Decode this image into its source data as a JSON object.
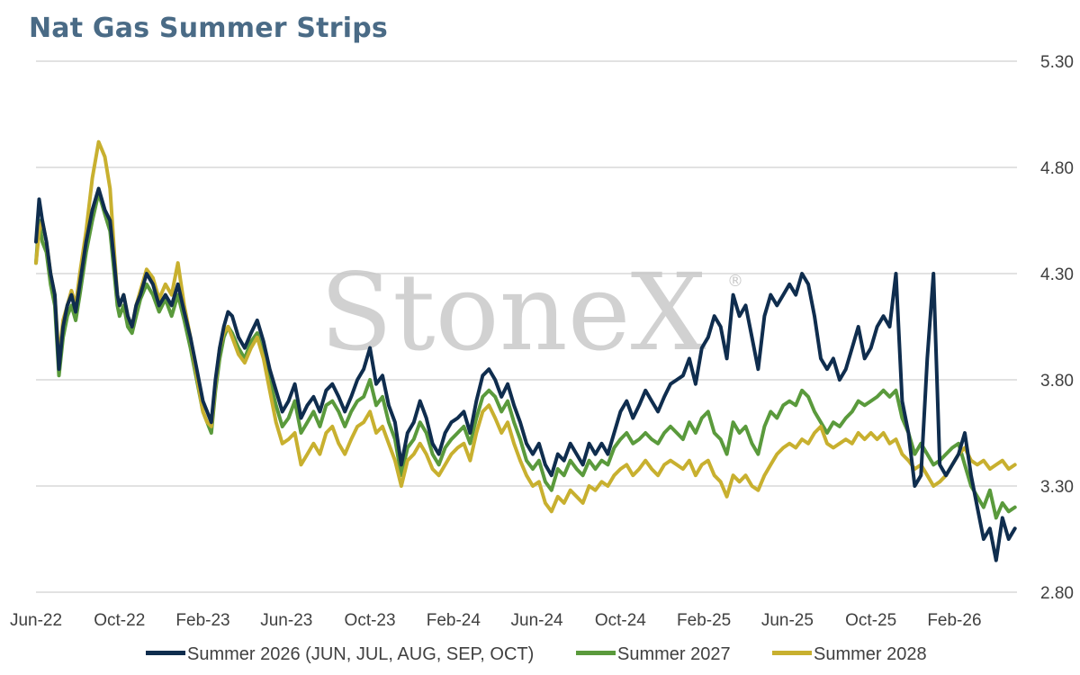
{
  "chart_data": {
    "type": "line",
    "title": "Nat Gas Summer Strips",
    "watermark": "StoneX",
    "watermark_mark": "®",
    "ylim": [
      2.8,
      5.3
    ],
    "yticks": [
      "5.30",
      "4.80",
      "4.30",
      "3.80",
      "3.30",
      "2.80"
    ],
    "ytick_values": [
      5.3,
      4.8,
      4.3,
      3.8,
      3.3,
      2.8
    ],
    "xlim": [
      0,
      47
    ],
    "xticks": [
      "Jun-22",
      "Oct-22",
      "Feb-23",
      "Jun-23",
      "Oct-23",
      "Feb-24",
      "Jun-24",
      "Oct-24",
      "Feb-25",
      "Jun-25",
      "Oct-25",
      "Feb-26"
    ],
    "xtick_positions": [
      0,
      4,
      8,
      12,
      16,
      20,
      24,
      28,
      32,
      36,
      40,
      44
    ],
    "grid": true,
    "y_axis_side": "right",
    "legend_position": "bottom",
    "series": [
      {
        "name": "Summer 2026 (JUN, JUL, AUG, SEP, OCT)",
        "color": "#0f2d4e",
        "x": [
          0,
          0.15,
          0.3,
          0.5,
          0.7,
          0.9,
          1.1,
          1.3,
          1.5,
          1.7,
          1.9,
          2.1,
          2.4,
          2.7,
          3.0,
          3.3,
          3.55,
          3.75,
          3.9,
          4.0,
          4.2,
          4.4,
          4.6,
          4.8,
          5.0,
          5.3,
          5.6,
          5.9,
          6.2,
          6.5,
          6.8,
          7.1,
          7.4,
          7.7,
          8.0,
          8.2,
          8.4,
          8.6,
          8.8,
          9.0,
          9.2,
          9.4,
          9.7,
          10.0,
          10.3,
          10.6,
          10.9,
          11.2,
          11.5,
          11.8,
          12.1,
          12.4,
          12.7,
          13.0,
          13.3,
          13.6,
          13.9,
          14.2,
          14.5,
          14.8,
          15.1,
          15.4,
          15.7,
          16.0,
          16.3,
          16.6,
          16.9,
          17.2,
          17.5,
          17.8,
          18.1,
          18.4,
          18.7,
          19.0,
          19.3,
          19.6,
          19.9,
          20.2,
          20.5,
          20.8,
          21.1,
          21.4,
          21.7,
          22.0,
          22.3,
          22.6,
          22.9,
          23.2,
          23.5,
          23.8,
          24.1,
          24.4,
          24.7,
          25.0,
          25.3,
          25.6,
          25.9,
          26.2,
          26.5,
          26.8,
          27.1,
          27.4,
          27.7,
          28.0,
          28.3,
          28.6,
          28.9,
          29.2,
          29.5,
          29.8,
          30.1,
          30.4,
          30.7,
          31.0,
          31.3,
          31.6,
          31.9,
          32.2,
          32.5,
          32.8,
          33.1,
          33.4,
          33.7,
          34.0,
          34.3,
          34.6,
          34.9,
          35.2,
          35.5,
          35.8,
          36.1,
          36.4,
          36.7,
          37.0,
          37.3,
          37.6,
          37.9,
          38.2,
          38.5,
          38.8,
          39.1,
          39.4,
          39.7,
          40.0,
          40.3,
          40.6,
          40.9,
          41.2,
          41.5,
          41.8,
          42.1,
          42.4,
          42.7,
          43.0,
          43.3,
          43.6,
          43.9,
          44.2,
          44.5,
          44.8,
          45.1,
          45.4,
          45.7,
          46.0,
          46.3,
          46.6,
          46.9
        ],
        "y": [
          4.45,
          4.65,
          4.55,
          4.45,
          4.3,
          4.2,
          3.85,
          4.05,
          4.15,
          4.2,
          4.12,
          4.25,
          4.45,
          4.6,
          4.7,
          4.6,
          4.55,
          4.35,
          4.2,
          4.15,
          4.2,
          4.1,
          4.05,
          4.15,
          4.2,
          4.3,
          4.25,
          4.15,
          4.2,
          4.15,
          4.25,
          4.12,
          4.0,
          3.85,
          3.7,
          3.65,
          3.6,
          3.8,
          3.95,
          4.05,
          4.12,
          4.1,
          4.0,
          3.95,
          4.02,
          4.08,
          3.98,
          3.85,
          3.75,
          3.65,
          3.7,
          3.78,
          3.62,
          3.68,
          3.72,
          3.65,
          3.75,
          3.78,
          3.72,
          3.65,
          3.72,
          3.8,
          3.85,
          3.95,
          3.78,
          3.82,
          3.68,
          3.6,
          3.4,
          3.55,
          3.6,
          3.7,
          3.62,
          3.5,
          3.45,
          3.55,
          3.6,
          3.62,
          3.65,
          3.55,
          3.7,
          3.82,
          3.85,
          3.8,
          3.72,
          3.78,
          3.68,
          3.6,
          3.5,
          3.45,
          3.5,
          3.4,
          3.35,
          3.45,
          3.42,
          3.5,
          3.45,
          3.4,
          3.5,
          3.45,
          3.5,
          3.45,
          3.55,
          3.65,
          3.7,
          3.62,
          3.68,
          3.75,
          3.7,
          3.65,
          3.72,
          3.78,
          3.8,
          3.82,
          3.9,
          3.78,
          3.95,
          4.0,
          4.1,
          4.05,
          3.9,
          4.2,
          4.1,
          4.15,
          4.0,
          3.85,
          4.1,
          4.2,
          4.15,
          4.2,
          4.25,
          4.2,
          4.3,
          4.25,
          4.1,
          3.9,
          3.85,
          3.9,
          3.8,
          3.85,
          3.95,
          4.05,
          3.9,
          3.95,
          4.05,
          4.1,
          4.05,
          4.3,
          3.7,
          3.55,
          3.3,
          3.35,
          3.9,
          4.3,
          3.4,
          3.35,
          3.4,
          3.45,
          3.55,
          3.35,
          3.2,
          3.05,
          3.1,
          2.95,
          3.15,
          3.05,
          3.1
        ]
      },
      {
        "name": "Summer 2027",
        "color": "#5a9a3c",
        "x": [
          0,
          0.15,
          0.3,
          0.5,
          0.7,
          0.9,
          1.1,
          1.3,
          1.5,
          1.7,
          1.9,
          2.1,
          2.4,
          2.7,
          3.0,
          3.3,
          3.55,
          3.75,
          3.9,
          4.0,
          4.2,
          4.4,
          4.6,
          4.8,
          5.0,
          5.3,
          5.6,
          5.9,
          6.2,
          6.5,
          6.8,
          7.1,
          7.4,
          7.7,
          8.0,
          8.2,
          8.4,
          8.6,
          8.8,
          9.0,
          9.2,
          9.4,
          9.7,
          10.0,
          10.3,
          10.6,
          10.9,
          11.2,
          11.5,
          11.8,
          12.1,
          12.4,
          12.7,
          13.0,
          13.3,
          13.6,
          13.9,
          14.2,
          14.5,
          14.8,
          15.1,
          15.4,
          15.7,
          16.0,
          16.3,
          16.6,
          16.9,
          17.2,
          17.5,
          17.8,
          18.1,
          18.4,
          18.7,
          19.0,
          19.3,
          19.6,
          19.9,
          20.2,
          20.5,
          20.8,
          21.1,
          21.4,
          21.7,
          22.0,
          22.3,
          22.6,
          22.9,
          23.2,
          23.5,
          23.8,
          24.1,
          24.4,
          24.7,
          25.0,
          25.3,
          25.6,
          25.9,
          26.2,
          26.5,
          26.8,
          27.1,
          27.4,
          27.7,
          28.0,
          28.3,
          28.6,
          28.9,
          29.2,
          29.5,
          29.8,
          30.1,
          30.4,
          30.7,
          31.0,
          31.3,
          31.6,
          31.9,
          32.2,
          32.5,
          32.8,
          33.1,
          33.4,
          33.7,
          34.0,
          34.3,
          34.6,
          34.9,
          35.2,
          35.5,
          35.8,
          36.1,
          36.4,
          36.7,
          37.0,
          37.3,
          37.6,
          37.9,
          38.2,
          38.5,
          38.8,
          39.1,
          39.4,
          39.7,
          40.0,
          40.3,
          40.6,
          40.9,
          41.2,
          41.5,
          41.8,
          42.1,
          42.4,
          42.7,
          43.0,
          43.3,
          43.6,
          43.9,
          44.2,
          44.5,
          44.8,
          45.1,
          45.4,
          45.7,
          46.0,
          46.3,
          46.6,
          46.9
        ],
        "y": [
          4.35,
          4.55,
          4.45,
          4.4,
          4.25,
          4.15,
          3.82,
          4.0,
          4.1,
          4.15,
          4.08,
          4.2,
          4.4,
          4.55,
          4.68,
          4.58,
          4.5,
          4.3,
          4.15,
          4.1,
          4.15,
          4.05,
          4.02,
          4.1,
          4.18,
          4.25,
          4.2,
          4.12,
          4.18,
          4.1,
          4.2,
          4.08,
          3.95,
          3.8,
          3.65,
          3.6,
          3.55,
          3.75,
          3.9,
          4.0,
          4.05,
          4.02,
          3.95,
          3.9,
          3.98,
          4.02,
          3.92,
          3.8,
          3.68,
          3.58,
          3.62,
          3.7,
          3.55,
          3.6,
          3.65,
          3.58,
          3.68,
          3.7,
          3.65,
          3.58,
          3.65,
          3.7,
          3.72,
          3.8,
          3.68,
          3.72,
          3.6,
          3.52,
          3.35,
          3.48,
          3.52,
          3.6,
          3.55,
          3.45,
          3.4,
          3.48,
          3.52,
          3.55,
          3.58,
          3.5,
          3.62,
          3.72,
          3.75,
          3.72,
          3.65,
          3.7,
          3.6,
          3.52,
          3.42,
          3.38,
          3.42,
          3.32,
          3.28,
          3.38,
          3.35,
          3.42,
          3.38,
          3.35,
          3.42,
          3.38,
          3.42,
          3.4,
          3.48,
          3.52,
          3.55,
          3.5,
          3.52,
          3.55,
          3.52,
          3.5,
          3.55,
          3.58,
          3.55,
          3.52,
          3.6,
          3.55,
          3.62,
          3.65,
          3.55,
          3.52,
          3.45,
          3.6,
          3.55,
          3.58,
          3.5,
          3.45,
          3.58,
          3.65,
          3.62,
          3.68,
          3.7,
          3.68,
          3.75,
          3.72,
          3.65,
          3.6,
          3.55,
          3.6,
          3.58,
          3.62,
          3.65,
          3.7,
          3.68,
          3.7,
          3.72,
          3.75,
          3.72,
          3.75,
          3.62,
          3.55,
          3.45,
          3.5,
          3.45,
          3.4,
          3.42,
          3.45,
          3.48,
          3.5,
          3.4,
          3.3,
          3.25,
          3.2,
          3.28,
          3.15,
          3.22,
          3.18,
          3.2
        ]
      },
      {
        "name": "Summer 2028",
        "color": "#c8b02f",
        "x": [
          0,
          0.15,
          0.3,
          0.5,
          0.7,
          0.9,
          1.1,
          1.3,
          1.5,
          1.7,
          1.9,
          2.1,
          2.4,
          2.7,
          3.0,
          3.3,
          3.55,
          3.75,
          3.9,
          4.0,
          4.2,
          4.4,
          4.6,
          4.8,
          5.0,
          5.3,
          5.6,
          5.9,
          6.2,
          6.5,
          6.8,
          7.1,
          7.4,
          7.7,
          8.0,
          8.2,
          8.4,
          8.6,
          8.8,
          9.0,
          9.2,
          9.4,
          9.7,
          10.0,
          10.3,
          10.6,
          10.9,
          11.2,
          11.5,
          11.8,
          12.1,
          12.4,
          12.7,
          13.0,
          13.3,
          13.6,
          13.9,
          14.2,
          14.5,
          14.8,
          15.1,
          15.4,
          15.7,
          16.0,
          16.3,
          16.6,
          16.9,
          17.2,
          17.5,
          17.8,
          18.1,
          18.4,
          18.7,
          19.0,
          19.3,
          19.6,
          19.9,
          20.2,
          20.5,
          20.8,
          21.1,
          21.4,
          21.7,
          22.0,
          22.3,
          22.6,
          22.9,
          23.2,
          23.5,
          23.8,
          24.1,
          24.4,
          24.7,
          25.0,
          25.3,
          25.6,
          25.9,
          26.2,
          26.5,
          26.8,
          27.1,
          27.4,
          27.7,
          28.0,
          28.3,
          28.6,
          28.9,
          29.2,
          29.5,
          29.8,
          30.1,
          30.4,
          30.7,
          31.0,
          31.3,
          31.6,
          31.9,
          32.2,
          32.5,
          32.8,
          33.1,
          33.4,
          33.7,
          34.0,
          34.3,
          34.6,
          34.9,
          35.2,
          35.5,
          35.8,
          36.1,
          36.4,
          36.7,
          37.0,
          37.3,
          37.6,
          37.9,
          38.2,
          38.5,
          38.8,
          39.1,
          39.4,
          39.7,
          40.0,
          40.3,
          40.6,
          40.9,
          41.2,
          41.5,
          41.8,
          42.1,
          42.4,
          42.7,
          43.0,
          43.3,
          43.6,
          43.9,
          44.2,
          44.5,
          44.8,
          45.1,
          45.4,
          45.7,
          46.0,
          46.3,
          46.6,
          46.9
        ],
        "y": [
          4.35,
          4.5,
          4.55,
          4.45,
          4.3,
          4.2,
          3.9,
          4.08,
          4.15,
          4.22,
          4.15,
          4.3,
          4.5,
          4.75,
          4.92,
          4.85,
          4.7,
          4.4,
          4.2,
          4.15,
          4.2,
          4.1,
          4.05,
          4.15,
          4.22,
          4.32,
          4.28,
          4.18,
          4.25,
          4.2,
          4.35,
          4.15,
          4.0,
          3.82,
          3.65,
          3.6,
          3.58,
          3.78,
          3.95,
          4.02,
          4.05,
          4.0,
          3.92,
          3.88,
          3.95,
          4.0,
          3.9,
          3.75,
          3.6,
          3.5,
          3.52,
          3.55,
          3.4,
          3.45,
          3.5,
          3.45,
          3.55,
          3.58,
          3.5,
          3.45,
          3.52,
          3.58,
          3.6,
          3.65,
          3.55,
          3.58,
          3.5,
          3.42,
          3.3,
          3.42,
          3.45,
          3.5,
          3.45,
          3.38,
          3.35,
          3.4,
          3.45,
          3.48,
          3.5,
          3.42,
          3.55,
          3.65,
          3.68,
          3.62,
          3.55,
          3.6,
          3.5,
          3.42,
          3.35,
          3.3,
          3.32,
          3.22,
          3.18,
          3.25,
          3.22,
          3.28,
          3.25,
          3.22,
          3.3,
          3.28,
          3.32,
          3.3,
          3.35,
          3.38,
          3.4,
          3.35,
          3.38,
          3.42,
          3.38,
          3.35,
          3.4,
          3.42,
          3.4,
          3.38,
          3.42,
          3.35,
          3.4,
          3.42,
          3.35,
          3.32,
          3.25,
          3.35,
          3.32,
          3.35,
          3.3,
          3.28,
          3.35,
          3.4,
          3.45,
          3.48,
          3.5,
          3.48,
          3.52,
          3.5,
          3.55,
          3.58,
          3.5,
          3.48,
          3.5,
          3.52,
          3.5,
          3.55,
          3.52,
          3.55,
          3.52,
          3.55,
          3.5,
          3.52,
          3.45,
          3.42,
          3.38,
          3.4,
          3.35,
          3.3,
          3.32,
          3.35,
          3.4,
          3.45,
          3.48,
          3.42,
          3.4,
          3.42,
          3.38,
          3.4,
          3.42,
          3.38,
          3.4
        ]
      }
    ]
  }
}
